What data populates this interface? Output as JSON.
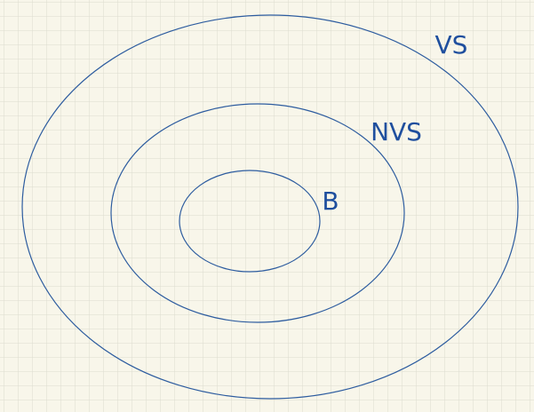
{
  "nodes": [
    {
      "label": "VS"
    },
    {
      "label": "NVS"
    },
    {
      "label": "B"
    }
  ]
}
